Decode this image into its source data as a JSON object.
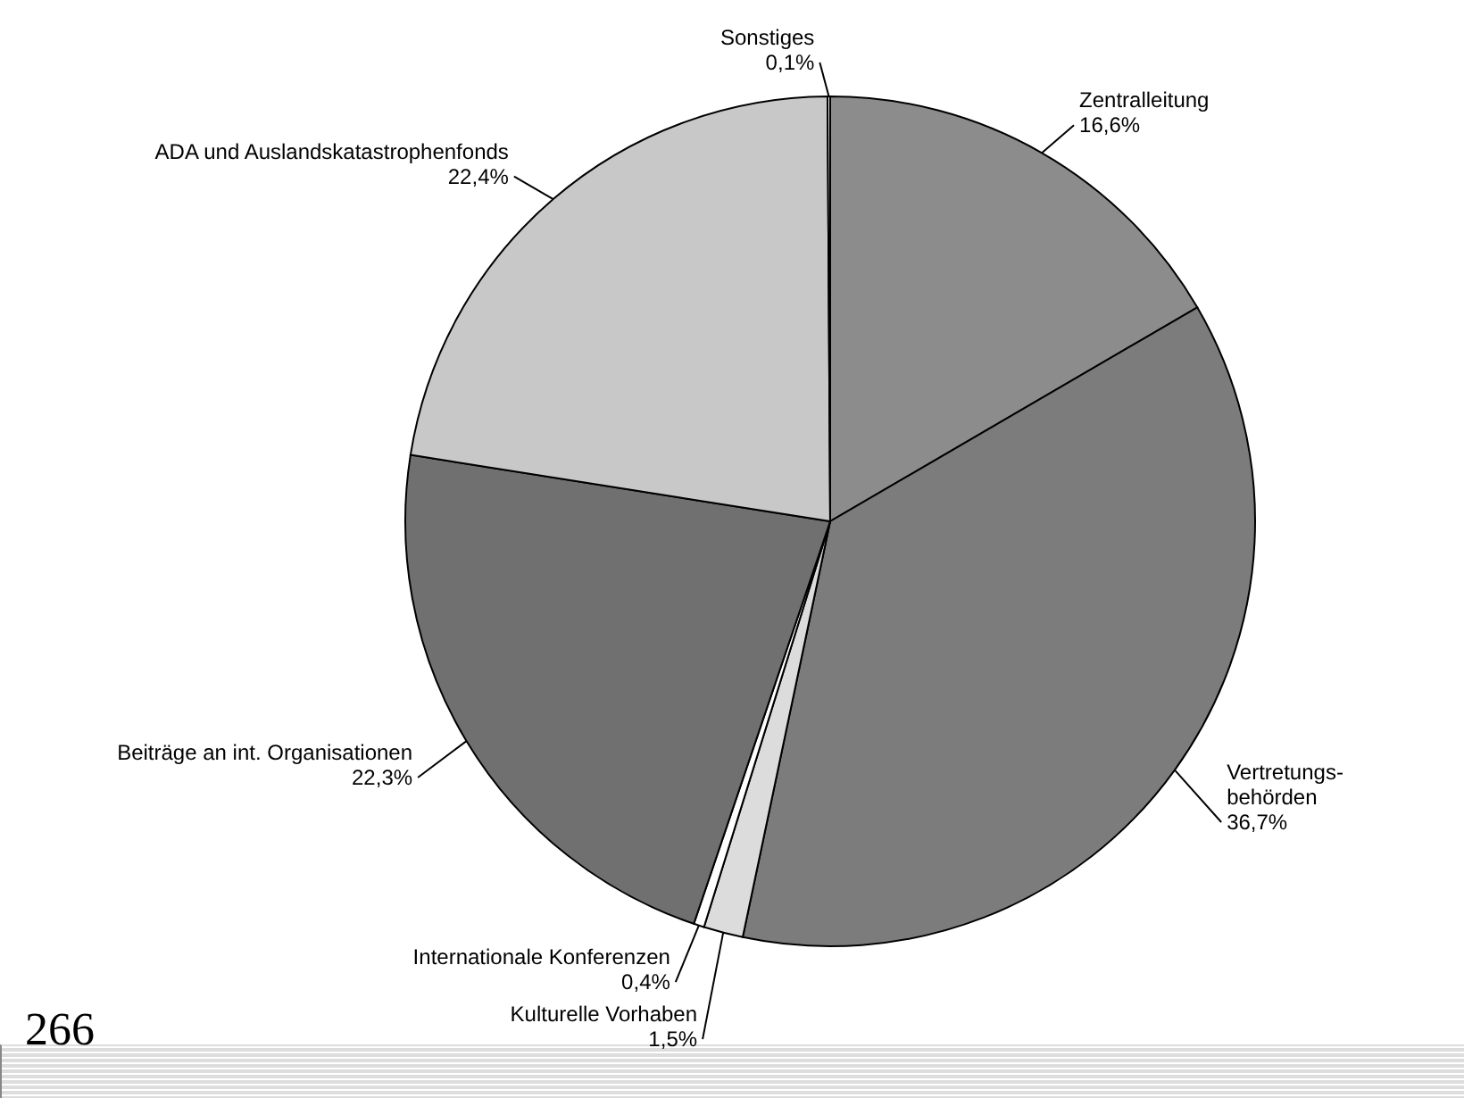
{
  "chart_data": {
    "type": "pie",
    "categories": [
      "Zentralleitung",
      "Vertretungs-\nbehörden",
      "Kulturelle Vorhaben",
      "Internationale Konferenzen",
      "Beiträge an int. Organisationen",
      "ADA und Auslandskatastrophenfonds",
      "Sonstiges"
    ],
    "values": [
      16.6,
      36.7,
      1.5,
      0.4,
      22.3,
      22.4,
      0.1
    ],
    "value_labels": [
      "16,6%",
      "36,7%",
      "1,5%",
      "0,4%",
      "22,3%",
      "22,4%",
      "0,1%"
    ],
    "colors": [
      "#8c8c8c",
      "#7c7c7c",
      "#dcdcdc",
      "#ffffff",
      "#707070",
      "#c8c8c8",
      "#ffffff"
    ],
    "annotations": [
      "266"
    ]
  }
}
